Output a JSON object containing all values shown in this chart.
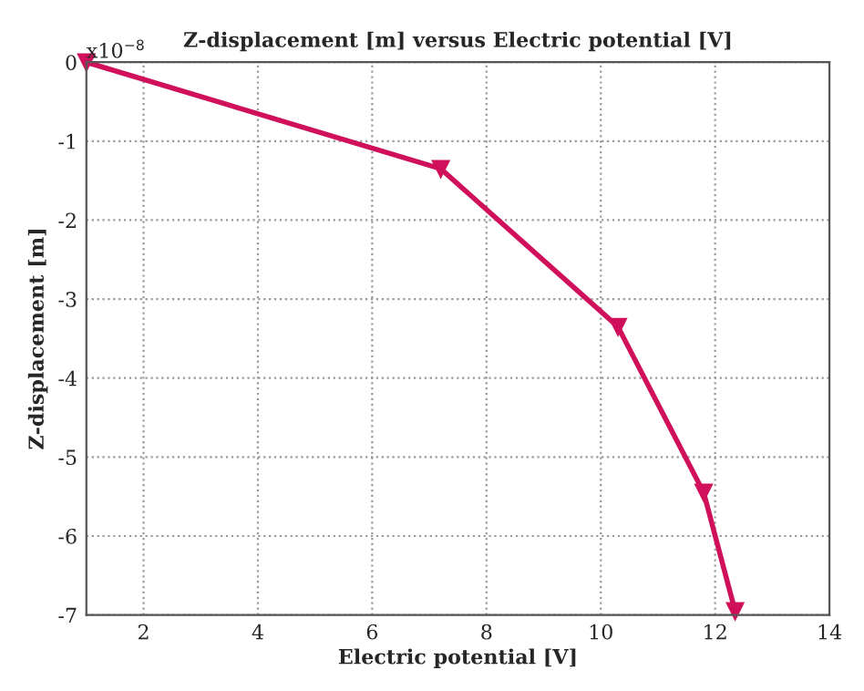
{
  "chart_data": {
    "type": "line",
    "title": "Z-displacement [m] versus Electric potential [V]",
    "xlabel": "Electric potential [V]",
    "ylabel": "Z-displacement [m]",
    "annotations": [
      "x10$^{−8}$"
    ],
    "x": [
      1,
      7.2,
      10.3,
      11.8,
      12.35
    ],
    "series": [
      {
        "color": "#d0105a",
        "values": [
          0,
          -1.35,
          -3.35,
          -5.45,
          -6.95
        ]
      }
    ],
    "xlim": [
      1,
      14
    ],
    "xticks": [
      2,
      4,
      6,
      8,
      10,
      12,
      14
    ],
    "ylim": [
      -7,
      0
    ],
    "yticks": [
      -7,
      -6,
      -5,
      -4,
      -3,
      -2,
      -1,
      0
    ],
    "grid": true,
    "marker": "triangle",
    "line_style": "solid"
  }
}
